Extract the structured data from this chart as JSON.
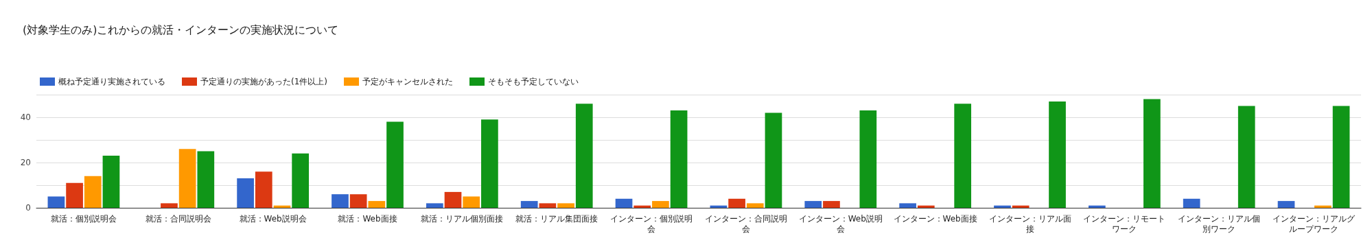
{
  "chart_data": {
    "type": "bar",
    "title": "(対象学生のみ)これからの就活・インターンの実施状況について",
    "categories": [
      "就活：個別説明会",
      "就活：合同説明会",
      "就活：Web説明会",
      "就活：Web面接",
      "就活：リアル個別面接",
      "就活：リアル集団面接",
      "インターン：個別説明会",
      "インターン：合同説明会",
      "インターン：Web説明会",
      "インターン：Web面接",
      "インターン：リアル面接",
      "インターン：リモートワーク",
      "インターン：リアル個別ワーク",
      "インターン：リアルグループワーク"
    ],
    "series": [
      {
        "name": "概ね予定通り実施されている",
        "color": "#3366cc",
        "values": [
          5,
          0,
          13,
          6,
          2,
          3,
          4,
          1,
          3,
          2,
          1,
          1,
          4,
          3
        ]
      },
      {
        "name": "予定通りの実施があった(1件以上)",
        "color": "#dc3912",
        "values": [
          11,
          2,
          16,
          6,
          7,
          2,
          1,
          4,
          3,
          1,
          1,
          0,
          0,
          0
        ]
      },
      {
        "name": "予定がキャンセルされた",
        "color": "#ff9900",
        "values": [
          14,
          26,
          1,
          3,
          5,
          2,
          3,
          2,
          0,
          0,
          0,
          0,
          0,
          1
        ]
      },
      {
        "name": "そもそも予定していない",
        "color": "#109618",
        "values": [
          23,
          25,
          24,
          38,
          39,
          46,
          43,
          42,
          43,
          46,
          47,
          48,
          45,
          45
        ]
      }
    ],
    "ylim": [
      0,
      50
    ],
    "yticks": [
      0,
      {
        "value": 10,
        "label": null
      },
      20,
      {
        "value": 30,
        "label": null
      },
      40,
      {
        "value": 50,
        "label": null
      }
    ],
    "grid": true,
    "legend": "top left"
  }
}
